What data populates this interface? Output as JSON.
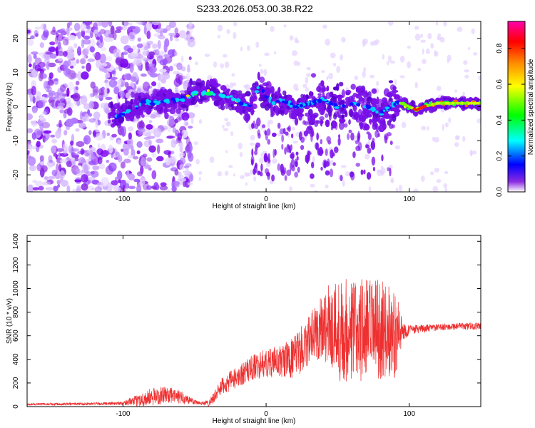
{
  "figure": {
    "title": "S233.2026.053.00.38.R22"
  },
  "chart_data": [
    {
      "type": "heatmap",
      "xlabel": "Height of straight line (km)",
      "ylabel": "Frequency (Hz)",
      "xlim": [
        -167,
        150
      ],
      "ylim": [
        -25,
        25
      ],
      "x_ticks": [
        -100,
        0,
        100
      ],
      "y_ticks": [
        -20,
        -10,
        0,
        10,
        20
      ],
      "colorbar": {
        "label": "Normalized spectral amplitude",
        "range": [
          0,
          0.95
        ],
        "ticks": [
          0.0,
          0.2,
          0.4,
          0.6,
          0.8
        ],
        "colormap": [
          "#ffffff",
          "#7b00ff",
          "#0000ff",
          "#00ffff",
          "#00ff00",
          "#ffff00",
          "#ff8800",
          "#ff0000",
          "#ff00aa"
        ]
      },
      "ridge": {
        "x": [
          -105,
          -85,
          -60,
          -50,
          -40,
          -30,
          -20,
          -15,
          -10,
          -5,
          0,
          5,
          10,
          20,
          30,
          40,
          50,
          60,
          70,
          80,
          90,
          95,
          100,
          105,
          110,
          120,
          130,
          140,
          150
        ],
        "y": [
          -3,
          1,
          2,
          4,
          4,
          3,
          2,
          0,
          1,
          6,
          3,
          1,
          2,
          0,
          1,
          2,
          0,
          1,
          0,
          -2,
          1,
          1,
          0,
          -1,
          0,
          1,
          1,
          1,
          1
        ]
      }
    },
    {
      "type": "line",
      "xlabel": "Height of straight line (km)",
      "ylabel": "SNR (10 * v/v)",
      "xlim": [
        -167,
        150
      ],
      "ylim": [
        0,
        1450
      ],
      "x_ticks": [
        -100,
        0,
        100
      ],
      "y_ticks": [
        0,
        200,
        400,
        600,
        800,
        1000,
        1200,
        1400
      ],
      "color": "#ee3030",
      "envelope": {
        "x": [
          -167,
          -110,
          -100,
          -90,
          -80,
          -70,
          -60,
          -50,
          -45,
          -40,
          -30,
          -20,
          -10,
          0,
          10,
          20,
          30,
          40,
          50,
          60,
          70,
          80,
          90,
          96,
          100,
          110,
          120,
          130,
          140,
          150
        ],
        "mean": [
          20,
          25,
          30,
          50,
          80,
          100,
          80,
          40,
          30,
          30,
          180,
          250,
          330,
          370,
          380,
          420,
          560,
          700,
          650,
          650,
          640,
          650,
          620,
          640,
          650,
          660,
          670,
          680,
          680,
          680
        ],
        "amplitude": [
          10,
          12,
          15,
          50,
          80,
          70,
          60,
          25,
          15,
          30,
          80,
          90,
          110,
          120,
          140,
          180,
          220,
          300,
          450,
          450,
          460,
          420,
          380,
          90,
          40,
          35,
          30,
          30,
          30,
          30
        ]
      }
    }
  ]
}
